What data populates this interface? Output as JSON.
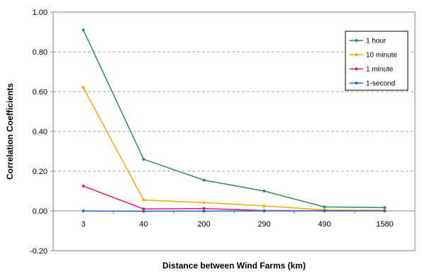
{
  "chart_data": {
    "type": "line",
    "categories": [
      "3",
      "40",
      "200",
      "290",
      "490",
      "1580"
    ],
    "series": [
      {
        "name": "1 hour",
        "color": "#2e8b57",
        "values": [
          0.91,
          0.26,
          0.155,
          0.1,
          0.02,
          0.017
        ]
      },
      {
        "name": "10 minute",
        "color": "#f5a800",
        "values": [
          0.62,
          0.055,
          0.042,
          0.025,
          0.005,
          0.003
        ]
      },
      {
        "name": "1 minute",
        "color": "#e8186e",
        "values": [
          0.125,
          0.01,
          0.012,
          0.002,
          0.001,
          0.001
        ]
      },
      {
        "name": "1-second",
        "color": "#1f6fd6",
        "values": [
          0.0,
          -0.002,
          -0.001,
          0.0,
          0.0,
          0.0
        ]
      }
    ],
    "title": "",
    "xlabel": "Distance between Wind Farms (km)",
    "ylabel": "Correlation Coefficients",
    "ylim": [
      -0.2,
      1.0
    ],
    "yticks": [
      "-0.20",
      "0.00",
      "0.20",
      "0.40",
      "0.60",
      "0.80",
      "1.00"
    ],
    "grid": true,
    "legend": "top-right"
  }
}
